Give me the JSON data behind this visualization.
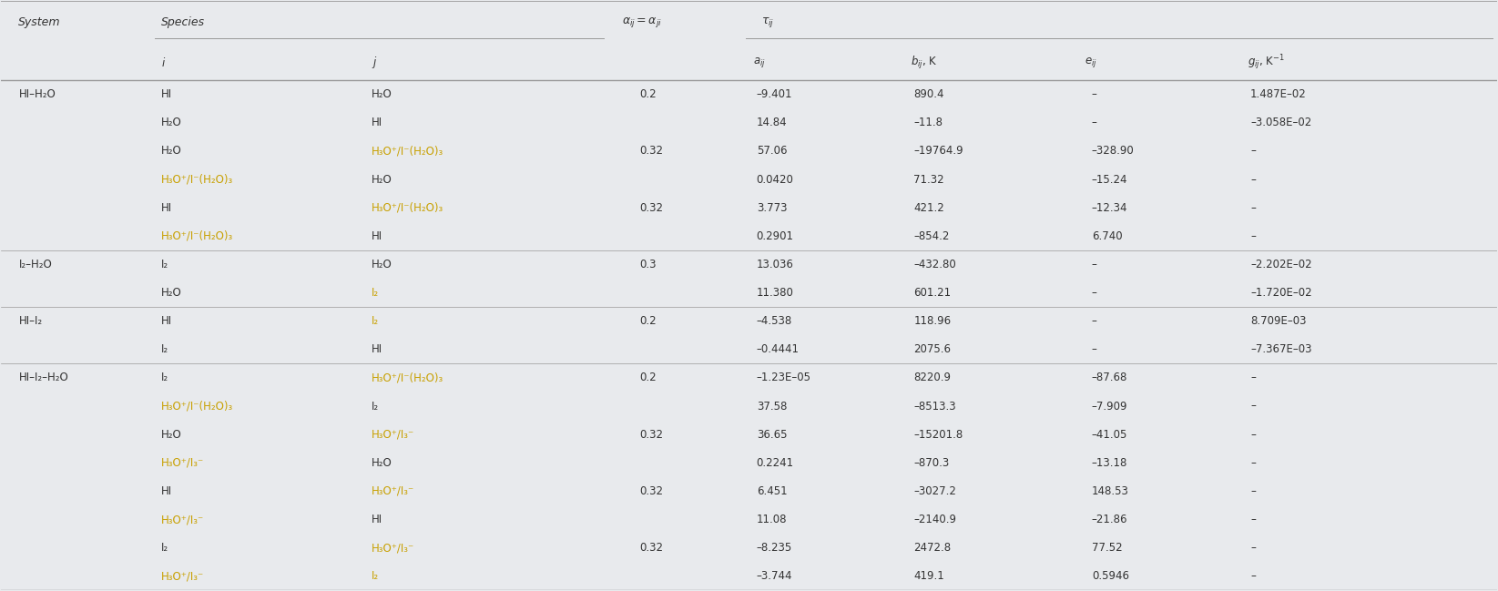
{
  "bg_color": "#e8eaed",
  "line_color": "#999999",
  "highlight_color": "#c8a000",
  "normal_color": "#333333",
  "fontsize": 8.5,
  "header_fontsize": 9.0,
  "cols": {
    "system": 0.012,
    "i": 0.107,
    "j": 0.248,
    "alpha": 0.415,
    "a": 0.503,
    "b": 0.608,
    "e": 0.724,
    "g": 0.833
  },
  "rows": [
    {
      "system": "HI–H₂O",
      "i": "HI",
      "j": "H₂O",
      "alpha": "0.2",
      "a": "–9.401",
      "b": "890.4",
      "e": "–",
      "g": "1.487E–02",
      "ih": false,
      "jh": false
    },
    {
      "system": "",
      "i": "H₂O",
      "j": "HI",
      "alpha": "",
      "a": "14.84",
      "b": "–11.8",
      "e": "–",
      "g": "–3.058E–02",
      "ih": false,
      "jh": false
    },
    {
      "system": "",
      "i": "H₂O",
      "j": "H₃O⁺/I⁻(H₂O)₃",
      "alpha": "0.32",
      "a": "57.06",
      "b": "–19764.9",
      "e": "–328.90",
      "g": "–",
      "ih": false,
      "jh": true
    },
    {
      "system": "",
      "i": "H₃O⁺/I⁻(H₂O)₃",
      "j": "H₂O",
      "alpha": "",
      "a": "0.0420",
      "b": "71.32",
      "e": "–15.24",
      "g": "–",
      "ih": true,
      "jh": false
    },
    {
      "system": "",
      "i": "HI",
      "j": "H₃O⁺/I⁻(H₂O)₃",
      "alpha": "0.32",
      "a": "3.773",
      "b": "421.2",
      "e": "–12.34",
      "g": "–",
      "ih": false,
      "jh": true
    },
    {
      "system": "",
      "i": "H₃O⁺/I⁻(H₂O)₃",
      "j": "HI",
      "alpha": "",
      "a": "0.2901",
      "b": "–854.2",
      "e": "6.740",
      "g": "–",
      "ih": true,
      "jh": false
    },
    {
      "system": "I₂–H₂O",
      "i": "I₂",
      "j": "H₂O",
      "alpha": "0.3",
      "a": "13.036",
      "b": "–432.80",
      "e": "–",
      "g": "–2.202E–02",
      "ih": false,
      "jh": false
    },
    {
      "system": "",
      "i": "H₂O",
      "j": "I₂",
      "alpha": "",
      "a": "11.380",
      "b": "601.21",
      "e": "–",
      "g": "–1.720E–02",
      "ih": false,
      "jh": true
    },
    {
      "system": "HI–I₂",
      "i": "HI",
      "j": "I₂",
      "alpha": "0.2",
      "a": "–4.538",
      "b": "118.96",
      "e": "–",
      "g": "8.709E–03",
      "ih": false,
      "jh": true
    },
    {
      "system": "",
      "i": "I₂",
      "j": "HI",
      "alpha": "",
      "a": "–0.4441",
      "b": "2075.6",
      "e": "–",
      "g": "–7.367E–03",
      "ih": false,
      "jh": false
    },
    {
      "system": "HI–I₂–H₂O",
      "i": "I₂",
      "j": "H₃O⁺/I⁻(H₂O)₃",
      "alpha": "0.2",
      "a": "–1.23E–05",
      "b": "8220.9",
      "e": "–87.68",
      "g": "–",
      "ih": false,
      "jh": true
    },
    {
      "system": "",
      "i": "H₃O⁺/I⁻(H₂O)₃",
      "j": "I₂",
      "alpha": "",
      "a": "37.58",
      "b": "–8513.3",
      "e": "–7.909",
      "g": "–",
      "ih": true,
      "jh": false
    },
    {
      "system": "",
      "i": "H₂O",
      "j": "H₃O⁺/I₃⁻",
      "alpha": "0.32",
      "a": "36.65",
      "b": "–15201.8",
      "e": "–41.05",
      "g": "–",
      "ih": false,
      "jh": true
    },
    {
      "system": "",
      "i": "H₃O⁺/I₃⁻",
      "j": "H₂O",
      "alpha": "",
      "a": "0.2241",
      "b": "–870.3",
      "e": "–13.18",
      "g": "–",
      "ih": true,
      "jh": false
    },
    {
      "system": "",
      "i": "HI",
      "j": "H₃O⁺/I₃⁻",
      "alpha": "0.32",
      "a": "6.451",
      "b": "–3027.2",
      "e": "148.53",
      "g": "–",
      "ih": false,
      "jh": true
    },
    {
      "system": "",
      "i": "H₃O⁺/I₃⁻",
      "j": "HI",
      "alpha": "",
      "a": "11.08",
      "b": "–2140.9",
      "e": "–21.86",
      "g": "–",
      "ih": true,
      "jh": false
    },
    {
      "system": "",
      "i": "I₂",
      "j": "H₃O⁺/I₃⁻",
      "alpha": "0.32",
      "a": "–8.235",
      "b": "2472.8",
      "e": "77.52",
      "g": "–",
      "ih": false,
      "jh": true
    },
    {
      "system": "",
      "i": "H₃O⁺/I₃⁻",
      "j": "I₂",
      "alpha": "",
      "a": "–3.744",
      "b": "419.1",
      "e": "0.5946",
      "g": "–",
      "ih": true,
      "jh": true
    }
  ]
}
